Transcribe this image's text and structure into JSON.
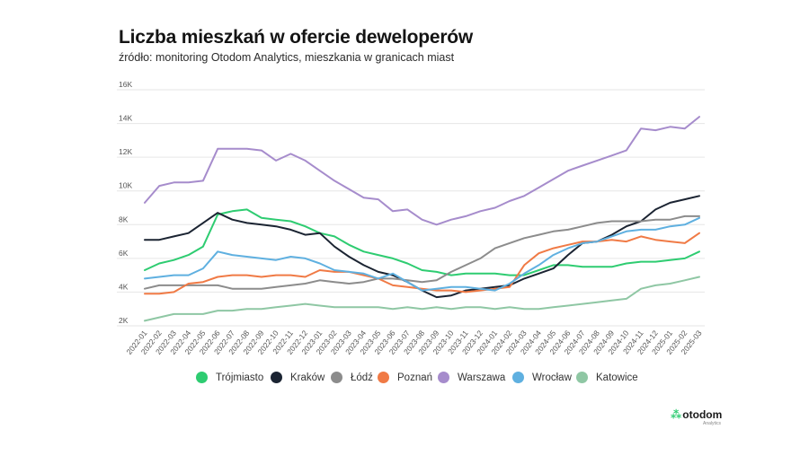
{
  "title": "Liczba mieszkań w ofercie deweloperów",
  "subtitle": "źródło: monitoring Otodom Analytics, mieszkania w granicach miast",
  "logo": {
    "text": "otodom",
    "sub": "Analytics",
    "icon": "otodom-logo-icon"
  },
  "chart_data": {
    "type": "line",
    "title": "Liczba mieszkań w ofercie deweloperów",
    "xlabel": "",
    "ylabel": "",
    "ylim": [
      2000,
      16000
    ],
    "yticks": [
      2000,
      4000,
      6000,
      8000,
      10000,
      12000,
      14000,
      16000
    ],
    "ytick_labels": [
      "2K",
      "4K",
      "6K",
      "8K",
      "10K",
      "12K",
      "14K",
      "16K"
    ],
    "grid": true,
    "legend_position": "bottom",
    "categories": [
      "2022-01",
      "2022-02",
      "2022-03",
      "2022-04",
      "2022-05",
      "2022-06",
      "2022-07",
      "2022-08",
      "2022-09",
      "2022-10",
      "2022-11",
      "2022-12",
      "2023-01",
      "2023-02",
      "2023-03",
      "2023-04",
      "2023-05",
      "2023-06",
      "2023-07",
      "2023-08",
      "2023-09",
      "2023-10",
      "2023-11",
      "2023-12",
      "2024-01",
      "2024-02",
      "2024-03",
      "2024-04",
      "2024-05",
      "2024-06",
      "2024-07",
      "2024-08",
      "2024-09",
      "2024-10",
      "2024-11",
      "2024-12",
      "2025-01",
      "2025-02",
      "2025-03"
    ],
    "series": [
      {
        "name": "Trójmiasto",
        "color": "#2ecc71",
        "values": [
          5300,
          5700,
          5900,
          6200,
          6700,
          8600,
          8800,
          8900,
          8400,
          8300,
          8200,
          7900,
          7500,
          7300,
          6800,
          6400,
          6200,
          6000,
          5700,
          5300,
          5200,
          5000,
          5100,
          5100,
          5100,
          5000,
          5000,
          5300,
          5600,
          5600,
          5500,
          5500,
          5500,
          5700,
          5800,
          5800,
          5900,
          6000,
          6400
        ]
      },
      {
        "name": "Kraków",
        "color": "#1b2432",
        "values": [
          7100,
          7100,
          7300,
          7500,
          8100,
          8700,
          8300,
          8100,
          8000,
          7900,
          7700,
          7400,
          7500,
          6700,
          6100,
          5600,
          5200,
          5000,
          4600,
          4100,
          3700,
          3800,
          4100,
          4200,
          4300,
          4400,
          4800,
          5100,
          5400,
          6200,
          6900,
          7000,
          7400,
          7900,
          8200,
          8900,
          9300,
          9500,
          9700
        ]
      },
      {
        "name": "Łódź",
        "color": "#8c8c8c",
        "values": [
          4200,
          4400,
          4400,
          4400,
          4400,
          4400,
          4200,
          4200,
          4200,
          4300,
          4400,
          4500,
          4700,
          4600,
          4500,
          4600,
          4800,
          4800,
          4700,
          4600,
          4700,
          5200,
          5600,
          6000,
          6600,
          6900,
          7200,
          7400,
          7600,
          7700,
          7900,
          8100,
          8200,
          8200,
          8200,
          8300,
          8300,
          8500,
          8500
        ]
      },
      {
        "name": "Poznań",
        "color": "#f07a45",
        "values": [
          3900,
          3900,
          4000,
          4500,
          4600,
          4900,
          5000,
          5000,
          4900,
          5000,
          5000,
          4900,
          5300,
          5200,
          5200,
          5000,
          4800,
          4400,
          4300,
          4200,
          4100,
          4100,
          4000,
          4100,
          4200,
          4300,
          5600,
          6300,
          6600,
          6800,
          7000,
          7000,
          7100,
          7000,
          7300,
          7100,
          7000,
          6900,
          7500
        ]
      },
      {
        "name": "Warszawa",
        "color": "#a68ccc",
        "values": [
          9300,
          10300,
          10500,
          10500,
          10600,
          12500,
          12500,
          12500,
          12400,
          11800,
          12200,
          11800,
          11200,
          10600,
          10100,
          9600,
          9500,
          8800,
          8900,
          8300,
          8000,
          8300,
          8500,
          8800,
          9000,
          9400,
          9700,
          10200,
          10700,
          11200,
          11500,
          11800,
          12100,
          12400,
          13700,
          13600,
          13800,
          13700,
          14400
        ]
      },
      {
        "name": "Wrocław",
        "color": "#5fb0e0",
        "values": [
          4800,
          4900,
          5000,
          5000,
          5400,
          6400,
          6200,
          6100,
          6000,
          5900,
          6100,
          6000,
          5700,
          5300,
          5200,
          5100,
          4800,
          5100,
          4600,
          4100,
          4200,
          4300,
          4300,
          4200,
          4100,
          4500,
          5100,
          5600,
          6200,
          6600,
          6900,
          7000,
          7300,
          7600,
          7700,
          7700,
          7900,
          8000,
          8400
        ]
      },
      {
        "name": "Katowice",
        "color": "#8fc7a4",
        "values": [
          2300,
          2500,
          2700,
          2700,
          2700,
          2900,
          2900,
          3000,
          3000,
          3100,
          3200,
          3300,
          3200,
          3100,
          3100,
          3100,
          3100,
          3000,
          3100,
          3000,
          3100,
          3000,
          3100,
          3100,
          3000,
          3100,
          3000,
          3000,
          3100,
          3200,
          3300,
          3400,
          3500,
          3600,
          4200,
          4400,
          4500,
          4700,
          4900
        ]
      }
    ]
  }
}
